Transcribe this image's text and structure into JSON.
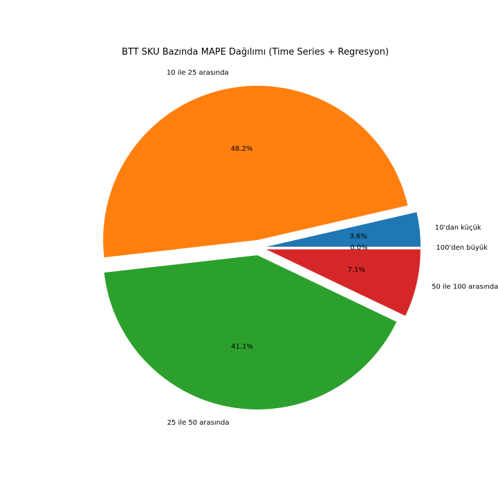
{
  "chart_data": {
    "type": "pie",
    "title": "BTT SKU Bazında MAPE Dağılımı (Time Series + Regresyon)",
    "slices": [
      {
        "label": "10'dan küçük",
        "value": 3.6,
        "pct_label": "3.6%",
        "color": "#1f77b4",
        "exploded": true
      },
      {
        "label": "10 ile 25 arasında",
        "value": 48.2,
        "pct_label": "48.2%",
        "color": "#ff7f0e",
        "exploded": true
      },
      {
        "label": "25 ile 50 arasında",
        "value": 41.1,
        "pct_label": "41.1%",
        "color": "#2ca02c",
        "exploded": true
      },
      {
        "label": "50 ile 100 arasında",
        "value": 7.1,
        "pct_label": "7.1%",
        "color": "#d62728",
        "exploded": true
      },
      {
        "label": "100'den büyük",
        "value": 0.0,
        "pct_label": "0.0%",
        "color": "#9467bd",
        "exploded": true
      }
    ],
    "start_angle_deg": 0,
    "direction": "counterclockwise"
  }
}
